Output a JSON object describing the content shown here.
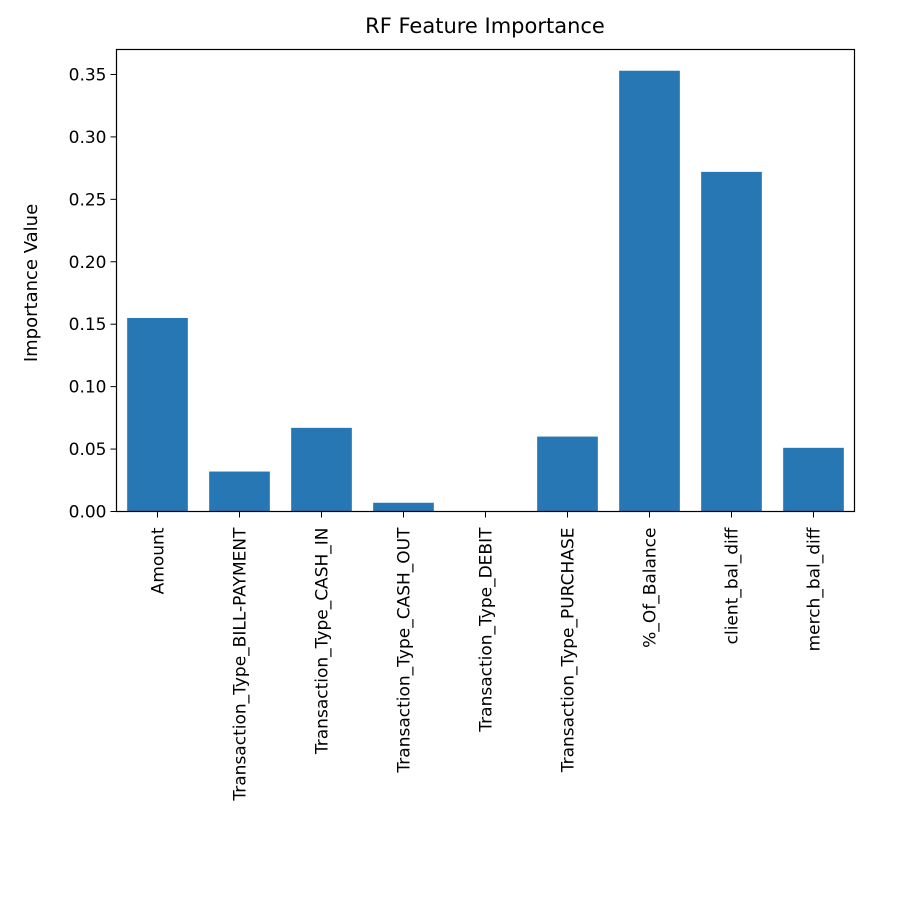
{
  "chart_data": {
    "type": "bar",
    "title": "RF Feature Importance",
    "xlabel": "",
    "ylabel": "Importance Value",
    "categories": [
      "Amount",
      "Transaction_Type_BILL-PAYMENT",
      "Transaction_Type_CASH_IN",
      "Transaction_Type_CASH_OUT",
      "Transaction_Type_DEBIT",
      "Transaction_Type_PURCHASE",
      "%_Of_Balance",
      "client_bal_diff",
      "merch_bal_diff"
    ],
    "values": [
      0.155,
      0.032,
      0.067,
      0.007,
      0.0,
      0.06,
      0.353,
      0.272,
      0.051
    ],
    "ylim": [
      0,
      0.37
    ],
    "yticks": [
      0.0,
      0.05,
      0.1,
      0.15,
      0.2,
      0.25,
      0.3,
      0.35
    ],
    "ytick_labels": [
      "0.00",
      "0.05",
      "0.10",
      "0.15",
      "0.20",
      "0.25",
      "0.30",
      "0.35"
    ],
    "grid": false,
    "bar_color": "#2677b4"
  }
}
